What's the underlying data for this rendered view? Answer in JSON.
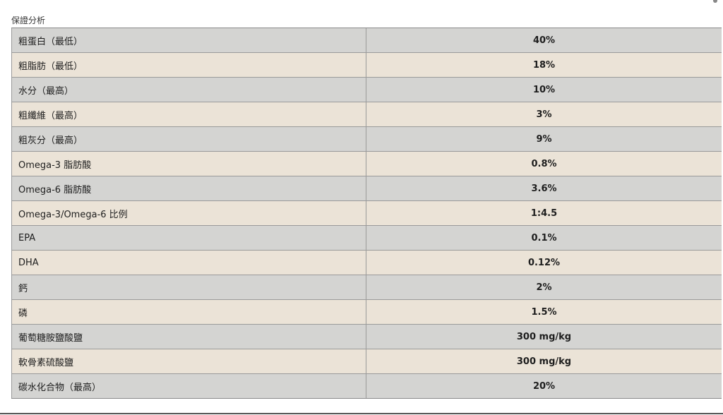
{
  "caption": "保證分析",
  "rows": [
    {
      "label": "粗蛋白（最低）",
      "value": "40%"
    },
    {
      "label": "粗脂肪（最低）",
      "value": "18%"
    },
    {
      "label": "水分（最高）",
      "value": "10%"
    },
    {
      "label": "粗纖維（最高）",
      "value": "3%"
    },
    {
      "label": "粗灰分（最高）",
      "value": "9%"
    },
    {
      "label": "Omega-3 脂肪酸",
      "value": "0.8%"
    },
    {
      "label": "Omega-6 脂肪酸",
      "value": "3.6%"
    },
    {
      "label": "Omega-3/Omega-6 比例",
      "value": "1:4.5"
    },
    {
      "label": "EPA",
      "value": "0.1%"
    },
    {
      "label": "DHA",
      "value": "0.12%"
    },
    {
      "label": "鈣",
      "value": "2%"
    },
    {
      "label": "磷",
      "value": "1.5%"
    },
    {
      "label": "葡萄糖胺鹽酸鹽",
      "value": "300 mg/kg"
    },
    {
      "label": "軟骨素硫酸鹽",
      "value": "300 mg/kg"
    },
    {
      "label": "碳水化合物（最高）",
      "value": "20%"
    }
  ],
  "colors": {
    "row_odd": "#d4d4d2",
    "row_even": "#ebe3d7",
    "text": "#1e1e1e"
  }
}
